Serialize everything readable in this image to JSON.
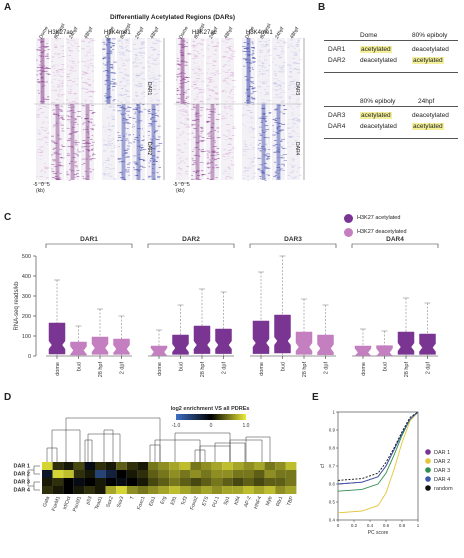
{
  "panelA": {
    "letter": "A",
    "title": "Differentially Acetylated Regions (DARs)",
    "left_group": {
      "h3k27ac": "H3K27ac",
      "h3k4me1": "H3K4me1"
    },
    "right_group": {
      "h3k27ac": "H3K27ac",
      "h3k4me1": "H3K4me1"
    },
    "stages": [
      "Dome",
      "80%epi",
      "24hpf",
      "48hpf"
    ],
    "dar_labels": {
      "dar1": "DAR1",
      "dar2": "DAR2",
      "dar3": "DAR3",
      "dar4": "DAR4"
    },
    "axis_ticks": [
      "-5",
      "0",
      "5"
    ],
    "axis_unit": "(kb)",
    "colors": {
      "purple": "#8a3c8c",
      "blue": "#3a44a8",
      "pink": "#c46ab8",
      "lightblue": "#8a90d0"
    }
  },
  "panelB": {
    "letter": "B",
    "table1": {
      "headers": [
        "Dome",
        "80% epiboly"
      ],
      "rows": [
        {
          "label": "DAR1",
          "a": "acetylated",
          "b": "deacetylated",
          "hl": "a"
        },
        {
          "label": "DAR2",
          "a": "deacetylated",
          "b": "acetylated",
          "hl": "b"
        }
      ]
    },
    "table2": {
      "headers": [
        "80% epiboly",
        "24hpf"
      ],
      "rows": [
        {
          "label": "DAR3",
          "a": "acetylated",
          "b": "deacetylated",
          "hl": "a"
        },
        {
          "label": "DAR4",
          "a": "deacetylated",
          "b": "acetylated",
          "hl": "b"
        }
      ]
    }
  },
  "panelC": {
    "letter": "C",
    "legend": {
      "acetylated": "H3K27 acetylated",
      "deacetylated": "H3K27 deacetylated"
    },
    "ylabel": "RNA-seq reads/kb",
    "yticks": [
      "0",
      "100",
      "200",
      "300",
      "400",
      "500"
    ],
    "groups": [
      "DAR1",
      "DAR2",
      "DAR3",
      "DAR4"
    ],
    "xticks": [
      "dome",
      "bud",
      "28 hpf",
      "2 dpf"
    ],
    "colors": {
      "acetylated": "#7a3592",
      "deacetylated": "#c47fc0"
    }
  },
  "chart_data": [
    {
      "type": "box",
      "ylabel": "RNA-seq reads/kb",
      "ylim": [
        0,
        500
      ],
      "groups": [
        "DAR1",
        "DAR2",
        "DAR3",
        "DAR4"
      ],
      "categories": [
        "dome",
        "bud",
        "28 hpf",
        "2 dpf"
      ],
      "boxes": [
        {
          "group": "DAR1",
          "cat": "dome",
          "state": "acetylated",
          "min": 0,
          "q1": 10,
          "median": 55,
          "q3": 165,
          "max": 380
        },
        {
          "group": "DAR1",
          "cat": "bud",
          "state": "deacetylated",
          "min": 0,
          "q1": 5,
          "median": 28,
          "q3": 70,
          "max": 150
        },
        {
          "group": "DAR1",
          "cat": "28 hpf",
          "state": "deacetylated",
          "min": 0,
          "q1": 8,
          "median": 40,
          "q3": 95,
          "max": 235
        },
        {
          "group": "DAR1",
          "cat": "2 dpf",
          "state": "deacetylated",
          "min": 0,
          "q1": 8,
          "median": 35,
          "q3": 85,
          "max": 200
        },
        {
          "group": "DAR2",
          "cat": "dome",
          "state": "deacetylated",
          "min": 0,
          "q1": 3,
          "median": 20,
          "q3": 50,
          "max": 130
        },
        {
          "group": "DAR2",
          "cat": "bud",
          "state": "acetylated",
          "min": 0,
          "q1": 8,
          "median": 40,
          "q3": 105,
          "max": 255
        },
        {
          "group": "DAR2",
          "cat": "28 hpf",
          "state": "acetylated",
          "min": 0,
          "q1": 12,
          "median": 55,
          "q3": 150,
          "max": 335
        },
        {
          "group": "DAR2",
          "cat": "2 dpf",
          "state": "acetylated",
          "min": 0,
          "q1": 12,
          "median": 55,
          "q3": 135,
          "max": 320
        },
        {
          "group": "DAR3",
          "cat": "dome",
          "state": "acetylated",
          "min": 0,
          "q1": 12,
          "median": 65,
          "q3": 175,
          "max": 420
        },
        {
          "group": "DAR3",
          "cat": "bud",
          "state": "acetylated",
          "min": 0,
          "q1": 15,
          "median": 75,
          "q3": 205,
          "max": 500
        },
        {
          "group": "DAR3",
          "cat": "28 hpf",
          "state": "deacetylated",
          "min": 0,
          "q1": 8,
          "median": 45,
          "q3": 120,
          "max": 285
        },
        {
          "group": "DAR3",
          "cat": "2 dpf",
          "state": "deacetylated",
          "min": 0,
          "q1": 6,
          "median": 38,
          "q3": 105,
          "max": 255
        },
        {
          "group": "DAR4",
          "cat": "dome",
          "state": "deacetylated",
          "min": 0,
          "q1": 3,
          "median": 18,
          "q3": 50,
          "max": 135
        },
        {
          "group": "DAR4",
          "cat": "bud",
          "state": "deacetylated",
          "min": 0,
          "q1": 3,
          "median": 18,
          "q3": 52,
          "max": 125
        },
        {
          "group": "DAR4",
          "cat": "28 hpf",
          "state": "acetylated",
          "min": 0,
          "q1": 8,
          "median": 45,
          "q3": 120,
          "max": 290
        },
        {
          "group": "DAR4",
          "cat": "2 dpf",
          "state": "acetylated",
          "min": 0,
          "q1": 8,
          "median": 42,
          "q3": 110,
          "max": 265
        }
      ]
    },
    {
      "type": "heatmap",
      "title": "log2 enrichment VS all PDREs",
      "scale_ticks": [
        "-1.0",
        "0",
        "1.0"
      ],
      "rows": [
        "DAR 1",
        "DAR 2",
        "DAR 3",
        "DAR 4"
      ],
      "columns": [
        "Gata",
        "FoxM1",
        "Irf/Oct",
        "Pou5f1",
        "p53",
        "Tead1",
        "Sox2",
        "Sox3",
        "T",
        "Foxc1",
        "Ets1",
        "Erg",
        "Elf1",
        "Tcf3",
        "Foxa2",
        "ETS",
        "PU.1",
        "Sp1",
        "Klf4",
        "AP-2",
        "HNF4",
        "Myb",
        "Rfx1",
        "TBP"
      ],
      "values": [
        [
          0.9,
          0.2,
          0.1,
          0.3,
          -0.1,
          0.2,
          0.1,
          0.4,
          0.2,
          0.1,
          0.5,
          0.6,
          0.7,
          0.8,
          0.5,
          0.6,
          0.7,
          0.8,
          0.7,
          0.6,
          0.7,
          0.5,
          0.6,
          0.8
        ],
        [
          -0.2,
          0.9,
          0.8,
          0.2,
          0.1,
          -0.6,
          -0.3,
          0.0,
          0.1,
          0.2,
          0.4,
          0.5,
          0.6,
          0.5,
          0.6,
          0.5,
          0.6,
          0.6,
          0.5,
          0.5,
          0.4,
          0.6,
          0.5,
          0.5
        ],
        [
          0.1,
          0.2,
          0.0,
          -0.1,
          0.0,
          0.1,
          0.0,
          -0.1,
          0.0,
          0.1,
          0.3,
          0.4,
          0.5,
          0.4,
          0.3,
          0.4,
          0.5,
          0.4,
          0.3,
          0.4,
          0.3,
          0.4,
          0.4,
          0.5
        ],
        [
          0.2,
          0.1,
          0.0,
          0.1,
          0.2,
          0.1,
          0.7,
          0.9,
          0.6,
          0.5,
          0.6,
          0.7,
          0.8,
          0.7,
          0.6,
          0.7,
          0.6,
          0.7,
          0.7,
          0.8,
          0.7,
          0.8,
          0.6,
          0.7
        ]
      ]
    },
    {
      "type": "line",
      "xlabel": "PC score",
      "ylabel": "cf",
      "xlim": [
        0,
        1
      ],
      "ylim": [
        0.4,
        1
      ],
      "xticks": [
        "0",
        "0.2",
        "0.4",
        "0.6",
        "0.8",
        "1"
      ],
      "yticks": [
        "0.4",
        "0.5",
        "0.6",
        "0.7",
        "0.8",
        "0.9",
        "1"
      ],
      "series": [
        {
          "name": "DAR 1",
          "color": "#7a3592",
          "x": [
            0,
            0.3,
            0.5,
            0.6,
            0.7,
            0.8,
            0.9,
            1
          ],
          "y": [
            0.6,
            0.61,
            0.64,
            0.7,
            0.79,
            0.88,
            0.96,
            1
          ]
        },
        {
          "name": "DAR 2",
          "color": "#e5c53a",
          "x": [
            0,
            0.3,
            0.5,
            0.6,
            0.7,
            0.8,
            0.9,
            1
          ],
          "y": [
            0.44,
            0.45,
            0.48,
            0.55,
            0.68,
            0.83,
            0.95,
            1
          ]
        },
        {
          "name": "DAR 3",
          "color": "#2f8f4e",
          "x": [
            0,
            0.3,
            0.5,
            0.6,
            0.7,
            0.8,
            0.9,
            1
          ],
          "y": [
            0.56,
            0.57,
            0.6,
            0.66,
            0.76,
            0.87,
            0.96,
            1
          ]
        },
        {
          "name": "DAR 4",
          "color": "#3b5ba8",
          "x": [
            0,
            0.3,
            0.5,
            0.6,
            0.7,
            0.8,
            0.9,
            1
          ],
          "y": [
            0.6,
            0.61,
            0.64,
            0.7,
            0.79,
            0.88,
            0.96,
            1
          ]
        },
        {
          "name": "random",
          "color": "#111111",
          "dashed": true,
          "x": [
            0,
            0.3,
            0.5,
            0.6,
            0.7,
            0.8,
            0.9,
            1
          ],
          "y": [
            0.62,
            0.63,
            0.66,
            0.72,
            0.8,
            0.89,
            0.97,
            1
          ]
        }
      ]
    }
  ],
  "panelD": {
    "letter": "D"
  },
  "panelE": {
    "letter": "E"
  }
}
